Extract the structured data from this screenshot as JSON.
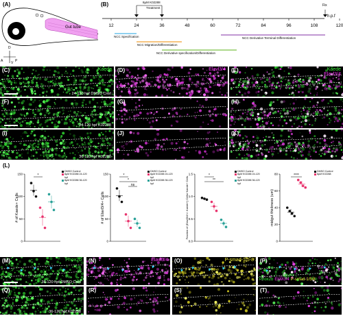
{
  "panel_A": {
    "letter": "(A)",
    "gut_label": "Gut tube",
    "axis": {
      "d": "D",
      "v": "V",
      "a": "A",
      "p": "P"
    }
  },
  "panel_B": {
    "letter": "(B)",
    "treatment_label": "8µM K02288",
    "treatment_word": "Treatment",
    "fix_label": "Fix",
    "unit": "h.p.f",
    "ticks": [
      "12",
      "24",
      "36",
      "48",
      "60",
      "72",
      "84",
      "96",
      "108",
      "120"
    ],
    "phases": [
      {
        "label": "NCC Specification",
        "color": "#4ab4e6"
      },
      {
        "label": "NCC Migration/Differentiation",
        "color": "#f0a030"
      },
      {
        "label": "NCC Derivative specification/Differentiation",
        "color": "#7ac143"
      },
      {
        "label": "NCC Derivative Terminal Differentiation",
        "color": "#9b59b6"
      }
    ]
  },
  "micro_rows": [
    {
      "panels": [
        {
          "letter": "(C)",
          "marker": "Kaede"
        },
        {
          "letter": "(D)",
          "marker": "Elavl3/4"
        },
        {
          "letter": "(E)",
          "marker": "Kaede",
          "marker2": "Elavl3/4"
        }
      ],
      "condition": "24-120 hpf DMSO Cntrl"
    },
    {
      "panels": [
        {
          "letter": "(F)"
        },
        {
          "letter": "(G)"
        },
        {
          "letter": "(H)"
        }
      ],
      "condition": "24-120 hpf K02288"
    },
    {
      "panels": [
        {
          "letter": "(I)"
        },
        {
          "letter": "(J)"
        },
        {
          "letter": "(K)"
        }
      ],
      "condition": "36-120 hpf K02288"
    }
  ],
  "panel_L_letter": "(L)",
  "chart_data": [
    {
      "type": "scatter",
      "ylabel": "# of Kaede+ Cells",
      "ylim": [
        0,
        150
      ],
      "yticks": [
        "0",
        "50",
        "100",
        "150"
      ],
      "series": [
        {
          "name": "DMSO Control",
          "color": "#111111",
          "values": [
            130,
            112,
            100
          ]
        },
        {
          "name": "8µM K02288 24-120 hpf",
          "color": "#e8336d",
          "values": [
            75,
            55,
            30
          ]
        },
        {
          "name": "8µM K02288 36-120 hpf",
          "color": "#2aa198",
          "values": [
            105,
            88,
            70
          ]
        }
      ],
      "significance": [
        "*"
      ]
    },
    {
      "type": "scatter",
      "ylabel": "# of Elavl3/4+ Cells",
      "ylim": [
        0,
        150
      ],
      "yticks": [
        "0",
        "50",
        "100",
        "150"
      ],
      "series": [
        {
          "name": "DMSO Control",
          "color": "#111111",
          "values": [
            118,
            100,
            88
          ]
        },
        {
          "name": "8µM K02288 24-120 hpf",
          "color": "#e8336d",
          "values": [
            60,
            45,
            30
          ]
        },
        {
          "name": "8µM K02288 36-120 hpf",
          "color": "#2aa198",
          "values": [
            50,
            40,
            30
          ]
        }
      ],
      "significance": [
        "*",
        "*",
        "ns"
      ]
    },
    {
      "type": "scatter",
      "ylabel": "Fraction of (Elavl3/4+/- Kaede+) Cells/ Kaede+ Cells",
      "ylim": [
        0,
        1.5
      ],
      "yticks": [
        "0.0",
        "0.5",
        "1.0",
        "1.5"
      ],
      "series": [
        {
          "name": "DMSO Control",
          "color": "#111111",
          "values": [
            0.97,
            0.95,
            0.93
          ]
        },
        {
          "name": "8µM K02288 24-120 hpf",
          "color": "#e8336d",
          "values": [
            0.88,
            0.78,
            0.68
          ]
        },
        {
          "name": "8µM K02288 36-120 hpf",
          "color": "#2aa198",
          "values": [
            0.48,
            0.4,
            0.32
          ]
        }
      ],
      "significance": [
        "*",
        "**"
      ]
    },
    {
      "type": "scatter",
      "ylabel": "midgut thickness (um)",
      "ylim": [
        0,
        80
      ],
      "yticks": [
        "0",
        "20",
        "40",
        "60",
        "80"
      ],
      "series": [
        {
          "name": "DMSO Control",
          "color": "#111111",
          "values": [
            40,
            36,
            33,
            30
          ]
        },
        {
          "name": "8µM K02288",
          "color": "#e8336d",
          "values": [
            73,
            70,
            66,
            64
          ]
        }
      ],
      "significance": [
        "****"
      ]
    }
  ],
  "micro_rows_2": [
    {
      "panels": [
        {
          "letter": "(M)",
          "marker": "Phox2b"
        },
        {
          "letter": "(N)",
          "marker": "Elavl3/4"
        },
        {
          "letter": "(O)",
          "marker": "P-smad-1/5-8"
        },
        {
          "letter": "(P)"
        }
      ],
      "condition": "36-120 hpf DMSO Cntrl",
      "merge_labels": [
        "Phox2b",
        "Elavl3/4",
        "P-smad-1/5/8"
      ]
    },
    {
      "panels": [
        {
          "letter": "(Q)"
        },
        {
          "letter": "(R)"
        },
        {
          "letter": "(S)"
        },
        {
          "letter": "(T)"
        }
      ],
      "condition": "36-120 hpf K02288"
    }
  ],
  "colors": {
    "green": "#3cf03c",
    "magenta": "#ff3cff",
    "yellow": "#f5f03c",
    "cyan": "#38d8ff"
  }
}
